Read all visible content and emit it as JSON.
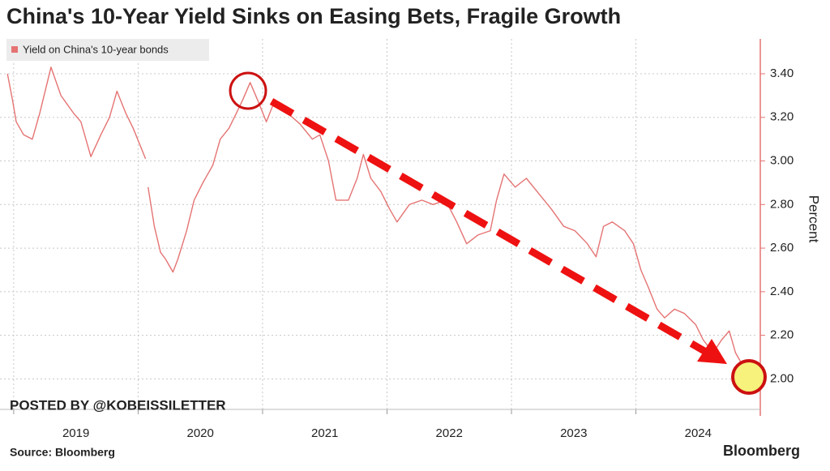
{
  "chart_data": {
    "type": "line",
    "title": "China's 10-Year Yield Sinks on Easing Bets, Fragile Growth",
    "y_label": "Percent",
    "source": "Source: Bloomberg",
    "brand": "Bloomberg",
    "watermark": "POSTED BY @KOBEISSILETTER",
    "grid": true,
    "x": [
      2018.95,
      2018.99,
      2019.02,
      2019.08,
      2019.15,
      2019.21,
      2019.3,
      2019.38,
      2019.48,
      2019.54,
      2019.62,
      2019.7,
      2019.77,
      2019.83,
      2019.9,
      2019.96,
      2020.06,
      2020.07,
      2020.08,
      2020.13,
      2020.18,
      2020.22,
      2020.28,
      2020.32,
      2020.39,
      2020.45,
      2020.52,
      2020.6,
      2020.66,
      2020.73,
      2020.79,
      2020.84,
      2020.9,
      2020.96,
      2021.03,
      2021.1,
      2021.2,
      2021.3,
      2021.4,
      2021.46,
      2021.53,
      2021.59,
      2021.69,
      2021.76,
      2021.81,
      2021.87,
      2021.95,
      2022.02,
      2022.08,
      2022.18,
      2022.28,
      2022.37,
      2022.47,
      2022.56,
      2022.64,
      2022.73,
      2022.83,
      2022.88,
      2022.94,
      2023.03,
      2023.12,
      2023.22,
      2023.32,
      2023.42,
      2023.51,
      2023.61,
      2023.68,
      2023.74,
      2023.81,
      2023.91,
      2023.98,
      2024.04,
      2024.1,
      2024.17,
      2024.23,
      2024.31,
      2024.39,
      2024.48,
      2024.54,
      2024.62,
      2024.69,
      2024.75,
      2024.8,
      2024.87,
      2024.92,
      2024.95
    ],
    "series": [
      {
        "name": "Yield on China's 10-year bonds",
        "color": "#e57373",
        "values": [
          3.4,
          3.28,
          3.18,
          3.12,
          3.1,
          3.22,
          3.43,
          3.3,
          3.22,
          3.18,
          3.02,
          3.12,
          3.2,
          3.32,
          3.22,
          3.15,
          3.01,
          null,
          2.88,
          2.7,
          2.58,
          2.55,
          2.49,
          2.55,
          2.68,
          2.82,
          2.9,
          2.98,
          3.1,
          3.15,
          3.22,
          3.28,
          3.36,
          3.28,
          3.18,
          3.28,
          3.22,
          3.17,
          3.1,
          3.12,
          3.0,
          2.82,
          2.82,
          2.92,
          3.03,
          2.92,
          2.86,
          2.78,
          2.72,
          2.8,
          2.82,
          2.8,
          2.82,
          2.72,
          2.62,
          2.66,
          2.68,
          2.82,
          2.94,
          2.88,
          2.92,
          2.85,
          2.78,
          2.7,
          2.68,
          2.62,
          2.56,
          2.7,
          2.72,
          2.68,
          2.62,
          2.5,
          2.42,
          2.32,
          2.28,
          2.32,
          2.3,
          2.25,
          2.18,
          2.12,
          2.18,
          2.22,
          2.12,
          2.05,
          2.08,
          2.02
        ]
      }
    ],
    "xlim": [
      2018.89,
      2024.98
    ],
    "xticks": [
      2019,
      2020,
      2021,
      2022,
      2023,
      2024
    ],
    "ylim": [
      1.86,
      3.56
    ],
    "yticks": [
      {
        "value": 2,
        "label": "2.00"
      },
      {
        "value": 2.2,
        "label": "2.20"
      },
      {
        "value": 2.4,
        "label": "2.40"
      },
      {
        "value": 2.6,
        "label": "2.60"
      },
      {
        "value": 2.8,
        "label": "2.80"
      },
      {
        "value": 3,
        "label": "3.00"
      },
      {
        "value": 3.2,
        "label": "3.20"
      },
      {
        "value": 3.4,
        "label": "3.40"
      }
    ]
  }
}
